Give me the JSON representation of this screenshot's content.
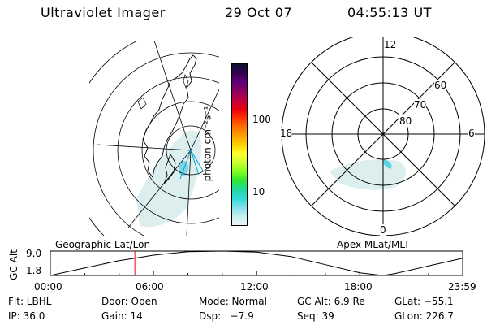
{
  "header": {
    "title": "Ultraviolet Imager",
    "date": "29 Oct 07",
    "time": "04:55:13 UT"
  },
  "colorbar": {
    "unit_label": "photon cm⁻²s⁻¹",
    "tick_labels": [
      "100",
      "10"
    ],
    "colors": [
      "#101030",
      "#300050",
      "#60007a",
      "#8a0060",
      "#c00040",
      "#e60010",
      "#ff3000",
      "#ff7000",
      "#ffa000",
      "#ffd000",
      "#ffff30",
      "#c8ff30",
      "#80ff20",
      "#30e830",
      "#20d8a0",
      "#30d8d8",
      "#80e0e8",
      "#c8eef0",
      "#e8f6f8"
    ]
  },
  "geo_map": {
    "caption": "Geographic Lat/Lon"
  },
  "polar_plot": {
    "caption": "Apex MLat/MLT",
    "mlt_labels": {
      "top": "12",
      "left": "18",
      "right": "6",
      "bottom": "0"
    },
    "lat_labels": [
      "60",
      "70",
      "80"
    ]
  },
  "altitude_plot": {
    "ylabel": "GC Alt",
    "yticks": [
      "9.0",
      "1.8"
    ],
    "xticks": [
      "00:00",
      "06:00",
      "12:00",
      "18:00",
      "23:59"
    ],
    "marker_color": "#ff0000"
  },
  "footer": {
    "row1": [
      "Flt: LBHL",
      "Door: Open",
      "Mode: Normal",
      "GC Alt: 6.9 Re",
      "GLat: −55.1"
    ],
    "row2": [
      "IP: 36.0",
      "Gain: 14",
      "Dsp:   −7.9",
      "Seq: 39",
      "GLon: 226.7"
    ]
  },
  "chart_data": {
    "type": "line",
    "x": [
      "00:00",
      "02:00",
      "04:00",
      "04:55",
      "06:00",
      "08:00",
      "10:00",
      "12:00",
      "14:00",
      "16:00",
      "18:00",
      "19:20",
      "20:00",
      "22:00",
      "23:59"
    ],
    "series": [
      {
        "values": [
          1.8,
          4.0,
          6.2,
          6.9,
          7.8,
          8.8,
          9.0,
          8.7,
          7.4,
          5.0,
          2.6,
          1.8,
          2.3,
          4.6,
          6.9
        ]
      }
    ],
    "ylim": [
      1.8,
      9.0
    ],
    "xlim": [
      "00:00",
      "23:59"
    ],
    "current_time": "04:55",
    "xlabel": "",
    "ylabel": "GC Alt"
  }
}
